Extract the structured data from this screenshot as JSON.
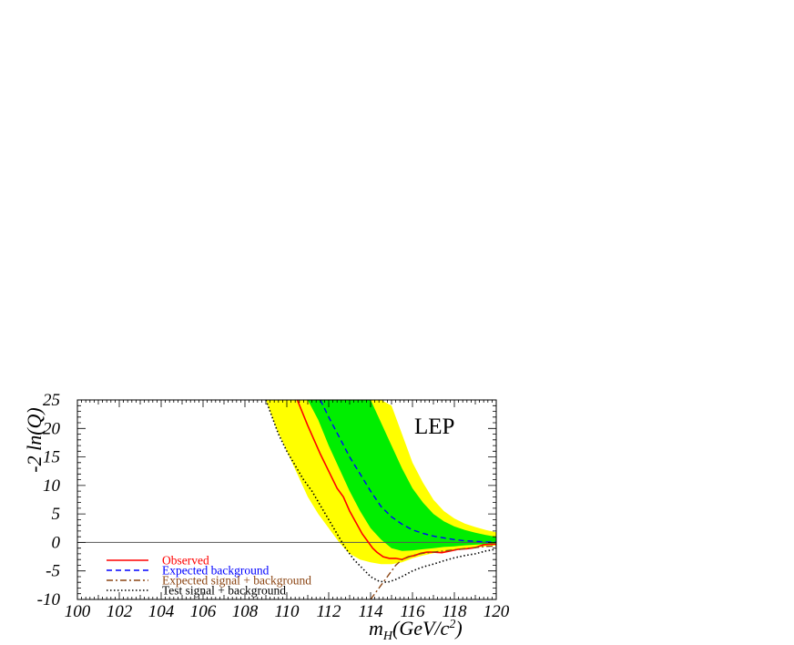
{
  "chart_data": {
    "type": "line",
    "experiment_label": "LEP",
    "ylabel": "-2 ln(Q)",
    "xlabel": "m_H(GeV/c^2)",
    "xlim": [
      100,
      120
    ],
    "ylim": [
      -10,
      25
    ],
    "x_ticks": [
      "100",
      "102",
      "104",
      "106",
      "108",
      "110",
      "112",
      "114",
      "116",
      "118",
      "120"
    ],
    "y_ticks": [
      "25",
      "20",
      "15",
      "10",
      "5",
      "0",
      "-5",
      "-10"
    ],
    "colors": {
      "band_2sigma": "#ffff00",
      "band_1sigma": "#00ee00",
      "observed": "#ff0000",
      "expected_background": "#0000ff",
      "expected_signal_background": "#8b4513",
      "test_signal_background": "#000000",
      "zero_line": "#555555"
    },
    "bands": {
      "x": [
        109.0,
        109.5,
        110.0,
        110.5,
        111.0,
        111.5,
        112.0,
        112.5,
        113.0,
        113.5,
        114.0,
        114.5,
        115.0,
        115.5,
        116.0,
        116.5,
        117.0,
        117.5,
        118.0,
        118.5,
        119.0,
        119.5,
        120.0
      ],
      "two_sigma_upper": [
        null,
        null,
        null,
        null,
        null,
        null,
        null,
        25,
        25,
        25,
        25,
        25,
        24,
        19,
        14,
        10.5,
        7.5,
        5.5,
        4.2,
        3.3,
        2.7,
        2.2,
        1.8
      ],
      "two_sigma_lower": [
        25,
        20,
        16,
        12,
        8,
        5,
        2.5,
        0,
        -2,
        -3,
        -3.5,
        -3.8,
        -3.8,
        -3.5,
        -2.8,
        -2.3,
        -1.9,
        -1.6,
        -1.3,
        -1.1,
        -0.9,
        -0.7,
        -0.5
      ],
      "one_sigma_upper": [
        null,
        null,
        null,
        null,
        null,
        null,
        25,
        25,
        25,
        25,
        25,
        21,
        17,
        13,
        9.5,
        7,
        5,
        3.7,
        2.8,
        2.2,
        1.7,
        1.3,
        1
      ],
      "one_sigma_lower": [
        null,
        null,
        null,
        null,
        25,
        21.5,
        17,
        13,
        9,
        5.5,
        2.5,
        0.5,
        -1,
        -1.5,
        -1.4,
        -1.2,
        -1,
        -0.8,
        -0.7,
        -0.5,
        -0.4,
        -0.3,
        -0.2
      ]
    },
    "series": [
      {
        "name": "Observed",
        "style": "solid",
        "x": [
          110.5,
          110.8,
          111.0,
          111.3,
          111.6,
          112.0,
          112.4,
          112.7,
          113.0,
          113.3,
          113.6,
          113.9,
          114.1,
          114.3,
          114.6,
          114.9,
          115.2,
          115.5,
          115.8,
          116.1,
          116.4,
          116.7,
          117.0,
          117.4,
          117.8,
          118.2,
          118.6,
          119.0,
          119.4,
          119.7,
          120.0
        ],
        "y": [
          25,
          22.3,
          20.5,
          18,
          15.5,
          12.5,
          9.5,
          8,
          5.5,
          3.5,
          1.5,
          0,
          -1,
          -1.7,
          -2.5,
          -2.8,
          -2.8,
          -3,
          -2.5,
          -2.3,
          -1.9,
          -1.7,
          -1.7,
          -1.8,
          -1.5,
          -1.2,
          -1.1,
          -0.9,
          -0.4,
          -0.3,
          -0.3
        ]
      },
      {
        "name": "Expected background",
        "style": "dashed",
        "x": [
          111.6,
          112.0,
          112.5,
          113.0,
          113.5,
          114.0,
          114.5,
          115.0,
          115.5,
          116.0,
          116.5,
          117.0,
          117.5,
          118.0,
          118.5,
          119.0,
          119.5,
          120.0
        ],
        "y": [
          25,
          22,
          18.5,
          15,
          12,
          9,
          6.3,
          4.5,
          3.2,
          2.2,
          1.6,
          1.1,
          0.8,
          0.5,
          0.3,
          0.2,
          0.1,
          0.05
        ]
      },
      {
        "name": "Expected signal + background",
        "style": "dashdot",
        "x": [
          114.0,
          114.4,
          114.8,
          115.2,
          115.5,
          116.0,
          116.5,
          117.0,
          117.5,
          118.0,
          118.5,
          119.0,
          119.5,
          120.0
        ],
        "y": [
          -10,
          -8,
          -6,
          -4,
          -3,
          -2.3,
          -1.9,
          -1.7,
          -1.5,
          -1.3,
          -1.1,
          -0.9,
          -0.7,
          -0.6
        ]
      },
      {
        "name": "Test signal + background",
        "style": "dotted",
        "x": [
          109.0,
          109.3,
          109.6,
          110.0,
          110.4,
          110.8,
          111.2,
          111.6,
          112.0,
          112.4,
          112.8,
          113.2,
          113.6,
          114.0,
          114.4,
          114.8,
          115.2,
          115.6,
          116.0,
          116.5,
          117.0,
          117.5,
          118.0,
          118.5,
          119.0,
          119.5,
          120.0
        ],
        "y": [
          25,
          22,
          19,
          16,
          13.5,
          11,
          9,
          6.5,
          4,
          1.5,
          -1,
          -3,
          -4.5,
          -6,
          -6.8,
          -7,
          -6.5,
          -5.8,
          -5,
          -4.3,
          -3.8,
          -3.2,
          -2.7,
          -2.3,
          -2.0,
          -1.5,
          -1.2
        ]
      }
    ],
    "legend_position": "bottom-left"
  }
}
